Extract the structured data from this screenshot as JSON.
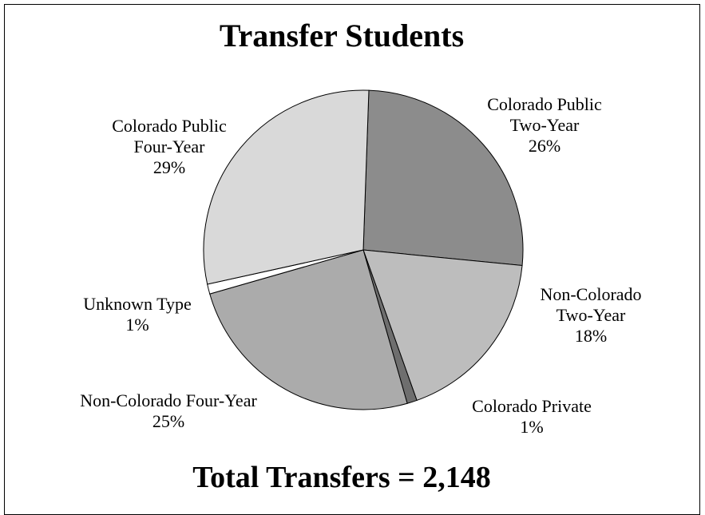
{
  "chart_data": {
    "type": "pie",
    "title": "Transfer Students",
    "subtitle": "Total Transfers = 2,148",
    "slices": [
      {
        "label": [
          "Colorado Public",
          "Two-Year"
        ],
        "percent_label": "26%",
        "value": 26,
        "color": "#8c8c8c"
      },
      {
        "label": [
          "Non-Colorado",
          "Two-Year"
        ],
        "percent_label": "18%",
        "value": 18,
        "color": "#bdbdbd"
      },
      {
        "label": [
          "Colorado Private"
        ],
        "percent_label": "1%",
        "value": 1,
        "color": "#6e6e6e"
      },
      {
        "label": [
          "Non-Colorado Four-Year"
        ],
        "percent_label": "25%",
        "value": 25,
        "color": "#ababab"
      },
      {
        "label": [
          "Unknown Type"
        ],
        "percent_label": "1%",
        "value": 1,
        "color": "#ffffff"
      },
      {
        "label": [
          "Colorado Public",
          "Four-Year"
        ],
        "percent_label": "29%",
        "value": 29,
        "color": "#d9d9d9"
      }
    ]
  }
}
